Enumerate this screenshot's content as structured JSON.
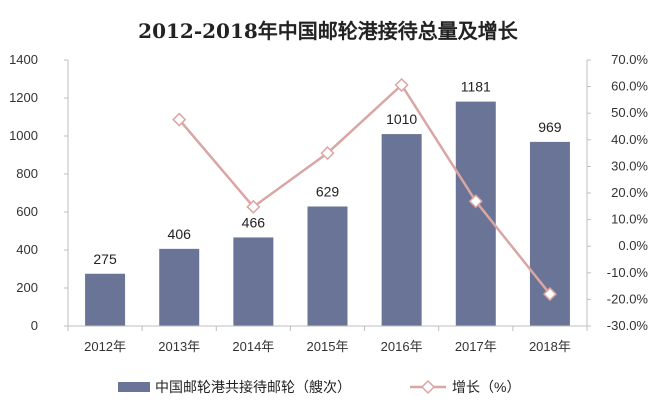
{
  "chart_data": {
    "type": "bar",
    "title": "2012-2018年中国邮轮港接待总量及增长",
    "categories": [
      "2012年",
      "2013年",
      "2014年",
      "2015年",
      "2016年",
      "2017年",
      "2018年"
    ],
    "series": [
      {
        "name": "中国邮轮港共接待邮轮（艘次）",
        "type": "bar",
        "axis": "left",
        "values": [
          275,
          406,
          466,
          629,
          1010,
          1181,
          969
        ],
        "labels": [
          "275",
          "406",
          "466",
          "629",
          "1010",
          "1181",
          "969"
        ]
      },
      {
        "name": "增长（%）",
        "type": "line",
        "axis": "right",
        "values": [
          null,
          47.6,
          14.8,
          35.0,
          60.6,
          16.9,
          -18.0
        ]
      }
    ],
    "y_left": {
      "min": 0,
      "max": 1400,
      "ticks": [
        "0",
        "200",
        "400",
        "600",
        "800",
        "1000",
        "1200",
        "1400"
      ]
    },
    "y_right": {
      "min": -30,
      "max": 70,
      "ticks": [
        "-30.0%",
        "-20.0%",
        "-10.0%",
        "0.0%",
        "10.0%",
        "20.0%",
        "30.0%",
        "40.0%",
        "50.0%",
        "60.0%",
        "70.0%"
      ]
    },
    "grid": false,
    "legend": "bottom",
    "colors": {
      "bar": "#6a7496",
      "line": "#d9a6a4",
      "marker_fill": "#ffffff",
      "axis": "#bfbfbf"
    }
  }
}
